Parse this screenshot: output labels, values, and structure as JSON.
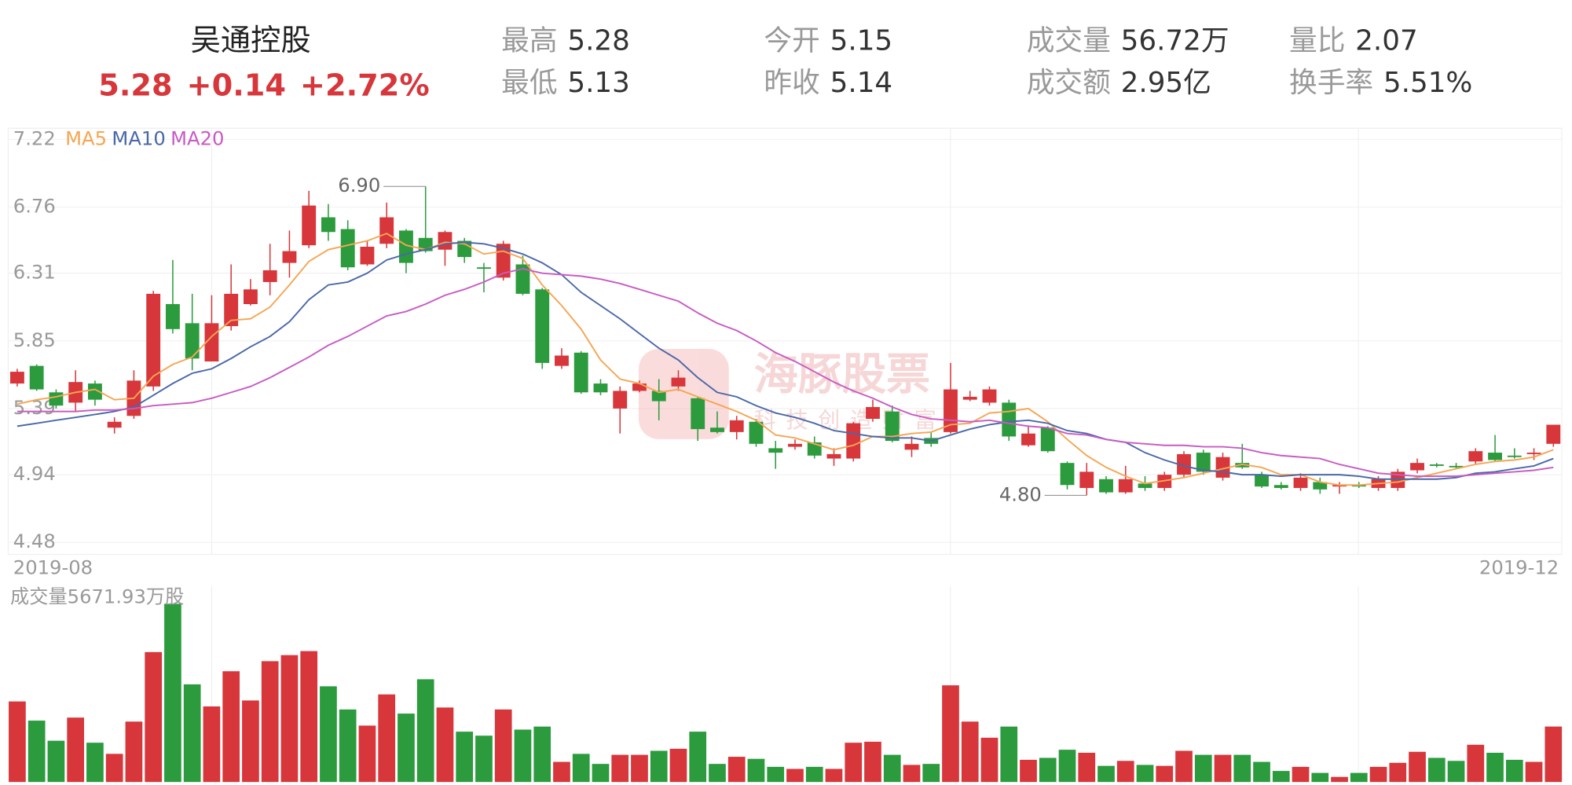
{
  "header": {
    "title": "吴通控股",
    "price": "5.28",
    "change": "+0.14",
    "change_pct": "+2.72%",
    "stats": [
      {
        "label": "最高",
        "value": "5.28"
      },
      {
        "label": "最低",
        "value": "5.13"
      },
      {
        "label": "今开",
        "value": "5.15"
      },
      {
        "label": "昨收",
        "value": "5.14"
      },
      {
        "label": "成交量",
        "value": "56.72万"
      },
      {
        "label": "成交额",
        "value": "2.95亿"
      },
      {
        "label": "量比",
        "value": "2.07"
      },
      {
        "label": "换手率",
        "value": "5.51%"
      }
    ]
  },
  "chart_data": {
    "type": "candlestick",
    "up_color": "#d7363b",
    "down_color": "#2b9b3e",
    "date_labels": [
      "2019-08",
      "2019-12"
    ],
    "ylim": [
      4.48,
      7.22
    ],
    "yticks": [
      7.22,
      6.76,
      6.31,
      5.85,
      5.39,
      4.94,
      4.48
    ],
    "grid": true,
    "max_label": "6.90",
    "min_label": "4.80",
    "watermark": {
      "title": "海豚股票",
      "subtitle": "科技创造财富"
    },
    "open": [
      5.56,
      5.68,
      5.5,
      5.43,
      5.56,
      5.26,
      5.34,
      5.54,
      6.1,
      5.97,
      5.71,
      5.95,
      6.1,
      6.25,
      6.38,
      6.5,
      6.69,
      6.61,
      6.37,
      6.51,
      6.6,
      6.55,
      6.47,
      6.53,
      6.35,
      6.28,
      6.37,
      6.2,
      5.68,
      5.77,
      5.56,
      5.39,
      5.51,
      5.51,
      5.54,
      5.46,
      5.26,
      5.23,
      5.3,
      5.12,
      5.13,
      5.16,
      5.05,
      5.05,
      5.32,
      5.37,
      5.11,
      5.19,
      5.23,
      5.45,
      5.43,
      5.43,
      5.14,
      5.26,
      5.02,
      4.85,
      4.91,
      4.82,
      4.88,
      4.85,
      4.94,
      5.09,
      4.92,
      5.02,
      4.94,
      4.87,
      4.85,
      4.89,
      4.86,
      4.87,
      4.85,
      4.85,
      4.97,
      5.01,
      5.0,
      5.03,
      5.09,
      5.07,
      5.08,
      5.15
    ],
    "high": [
      5.66,
      5.69,
      5.52,
      5.65,
      5.58,
      5.33,
      5.65,
      6.19,
      6.4,
      6.17,
      6.16,
      6.37,
      6.27,
      6.51,
      6.6,
      6.87,
      6.78,
      6.67,
      6.53,
      6.79,
      6.61,
      6.9,
      6.6,
      6.55,
      6.38,
      6.53,
      6.43,
      6.21,
      5.8,
      5.78,
      5.59,
      5.54,
      5.58,
      5.59,
      5.65,
      5.47,
      5.37,
      5.34,
      5.32,
      5.17,
      5.18,
      5.2,
      5.12,
      5.3,
      5.45,
      5.41,
      5.2,
      5.23,
      5.7,
      5.51,
      5.54,
      5.45,
      5.27,
      5.27,
      5.03,
      5.02,
      4.93,
      5.0,
      4.93,
      4.96,
      5.1,
      5.11,
      5.09,
      5.15,
      4.96,
      4.89,
      4.95,
      4.92,
      4.89,
      4.89,
      4.93,
      4.98,
      5.05,
      5.02,
      5.02,
      5.12,
      5.21,
      5.12,
      5.12,
      5.28
    ],
    "low": [
      5.54,
      5.51,
      5.39,
      5.37,
      5.41,
      5.22,
      5.32,
      5.51,
      5.9,
      5.65,
      5.71,
      5.92,
      6.09,
      6.16,
      6.28,
      6.48,
      6.53,
      6.33,
      6.36,
      6.48,
      6.31,
      6.45,
      6.36,
      6.38,
      6.18,
      6.26,
      6.16,
      5.66,
      5.66,
      5.49,
      5.48,
      5.22,
      5.5,
      5.31,
      5.51,
      5.17,
      5.22,
      5.18,
      5.13,
      4.98,
      5.11,
      5.05,
      5.0,
      5.03,
      5.3,
      5.16,
      5.06,
      5.13,
      5.22,
      5.44,
      5.41,
      5.17,
      5.13,
      5.09,
      4.84,
      4.8,
      4.81,
      4.81,
      4.83,
      4.83,
      4.92,
      4.94,
      4.9,
      4.98,
      4.85,
      4.84,
      4.83,
      4.81,
      4.81,
      4.85,
      4.83,
      4.83,
      4.95,
      4.99,
      4.98,
      5.01,
      5.03,
      5.05,
      5.04,
      5.13
    ],
    "close": [
      5.64,
      5.52,
      5.41,
      5.57,
      5.45,
      5.3,
      5.58,
      6.17,
      5.93,
      5.73,
      5.97,
      6.17,
      6.2,
      6.33,
      6.46,
      6.77,
      6.59,
      6.35,
      6.49,
      6.69,
      6.38,
      6.46,
      6.59,
      6.42,
      6.34,
      6.51,
      6.17,
      5.7,
      5.75,
      5.5,
      5.5,
      5.51,
      5.56,
      5.44,
      5.6,
      5.25,
      5.23,
      5.31,
      5.15,
      5.09,
      5.15,
      5.07,
      5.08,
      5.29,
      5.4,
      5.17,
      5.15,
      5.15,
      5.52,
      5.47,
      5.52,
      5.2,
      5.22,
      5.1,
      4.87,
      4.96,
      4.82,
      4.91,
      4.85,
      4.94,
      5.08,
      4.96,
      5.06,
      4.99,
      4.86,
      4.85,
      4.92,
      4.84,
      4.87,
      4.86,
      4.91,
      4.96,
      5.02,
      5.0,
      4.99,
      5.1,
      5.04,
      5.06,
      5.09,
      5.28
    ],
    "volume_label": "成交量5671.93万股",
    "volume_ylim": [
      0,
      20000
    ],
    "volume": [
      8240,
      6280,
      4220,
      6590,
      4020,
      2880,
      6180,
      13290,
      18230,
      9990,
      7730,
      11330,
      8340,
      12360,
      12980,
      13390,
      9790,
      7420,
      5770,
      8960,
      7000,
      10510,
      7620,
      5150,
      4740,
      7420,
      5360,
      5670,
      2060,
      2880,
      1850,
      2780,
      2780,
      3190,
      3400,
      5150,
      1850,
      2580,
      2370,
      1550,
      1340,
      1550,
      1340,
      4020,
      4120,
      2780,
      1750,
      1850,
      9890,
      6180,
      4530,
      5670,
      2270,
      2470,
      3300,
      2990,
      1650,
      2160,
      1750,
      1650,
      3190,
      2780,
      2780,
      2780,
      2060,
      1130,
      1550,
      930,
      520,
      930,
      1550,
      1960,
      3090,
      2470,
      2160,
      3810,
      2990,
      2270,
      2060,
      5671.93
    ],
    "series": [
      {
        "name": "MA5",
        "color": "#f5a653",
        "values": [
          5.42,
          5.45,
          5.47,
          5.5,
          5.52,
          5.45,
          5.46,
          5.61,
          5.69,
          5.74,
          5.88,
          5.99,
          6.0,
          6.08,
          6.23,
          6.39,
          6.47,
          6.5,
          6.53,
          6.58,
          6.5,
          6.47,
          6.52,
          6.51,
          6.44,
          6.46,
          6.41,
          6.23,
          6.09,
          5.93,
          5.72,
          5.59,
          5.56,
          5.5,
          5.52,
          5.47,
          5.42,
          5.37,
          5.31,
          5.21,
          5.19,
          5.15,
          5.11,
          5.14,
          5.2,
          5.2,
          5.22,
          5.23,
          5.28,
          5.29,
          5.36,
          5.37,
          5.39,
          5.3,
          5.18,
          5.07,
          4.99,
          4.93,
          4.88,
          4.9,
          4.92,
          4.95,
          4.98,
          5.01,
          4.99,
          4.94,
          4.94,
          4.89,
          4.87,
          4.87,
          4.88,
          4.89,
          4.92,
          4.95,
          4.98,
          5.01,
          5.03,
          5.04,
          5.06,
          5.11
        ]
      },
      {
        "name": "MA10",
        "color": "#4a68a8",
        "values": [
          5.27,
          5.29,
          5.31,
          5.33,
          5.35,
          5.37,
          5.4,
          5.48,
          5.56,
          5.63,
          5.66,
          5.73,
          5.81,
          5.88,
          5.98,
          6.13,
          6.23,
          6.25,
          6.31,
          6.4,
          6.44,
          6.47,
          6.51,
          6.52,
          6.51,
          6.48,
          6.44,
          6.38,
          6.3,
          6.18,
          6.09,
          6.0,
          5.9,
          5.8,
          5.72,
          5.6,
          5.5,
          5.47,
          5.41,
          5.36,
          5.33,
          5.29,
          5.24,
          5.22,
          5.2,
          5.19,
          5.19,
          5.17,
          5.21,
          5.25,
          5.28,
          5.3,
          5.31,
          5.29,
          5.24,
          5.22,
          5.18,
          5.16,
          5.09,
          5.04,
          5.0,
          4.97,
          4.96,
          4.94,
          4.94,
          4.93,
          4.94,
          4.94,
          4.94,
          4.93,
          4.91,
          4.91,
          4.91,
          4.91,
          4.92,
          4.95,
          4.96,
          4.98,
          5.0,
          5.05
        ]
      },
      {
        "name": "MA20",
        "color": "#c85bc3",
        "values": [
          5.37,
          5.37,
          5.37,
          5.37,
          5.38,
          5.38,
          5.39,
          5.41,
          5.42,
          5.43,
          5.46,
          5.5,
          5.54,
          5.6,
          5.67,
          5.74,
          5.82,
          5.88,
          5.95,
          6.02,
          6.05,
          6.1,
          6.16,
          6.2,
          6.25,
          6.31,
          6.34,
          6.31,
          6.3,
          6.29,
          6.27,
          6.24,
          6.2,
          6.16,
          6.12,
          6.04,
          5.97,
          5.92,
          5.85,
          5.77,
          5.71,
          5.64,
          5.57,
          5.51,
          5.46,
          5.4,
          5.35,
          5.32,
          5.31,
          5.3,
          5.31,
          5.29,
          5.27,
          5.26,
          5.22,
          5.21,
          5.18,
          5.16,
          5.15,
          5.14,
          5.14,
          5.13,
          5.13,
          5.12,
          5.09,
          5.07,
          5.06,
          5.05,
          5.01,
          4.98,
          4.95,
          4.94,
          4.93,
          4.93,
          4.93,
          4.94,
          4.95,
          4.96,
          4.97,
          4.99
        ]
      }
    ]
  }
}
